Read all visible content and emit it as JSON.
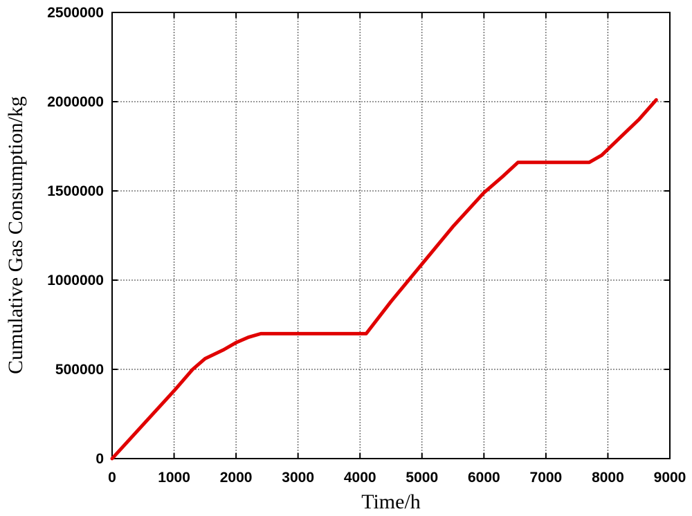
{
  "chart_data": {
    "type": "line",
    "x_label": "Time/h",
    "y_label": "Cumulative Gas Consumption/kg",
    "x": [
      0,
      500,
      1000,
      1300,
      1500,
      1800,
      2000,
      2200,
      2400,
      4100,
      4500,
      5000,
      5500,
      6000,
      6300,
      6550,
      7700,
      7900,
      8200,
      8500,
      8780
    ],
    "series": [
      {
        "color": "#e00000",
        "values": [
          0,
          190000,
          380000,
          500000,
          560000,
          610000,
          650000,
          680000,
          700000,
          700000,
          880000,
          1090000,
          1300000,
          1490000,
          1580000,
          1660000,
          1660000,
          1700000,
          1800000,
          1900000,
          2010000
        ]
      }
    ],
    "xlim": [
      0,
      9000
    ],
    "xticks": [
      0,
      1000,
      2000,
      3000,
      4000,
      5000,
      6000,
      7000,
      8000,
      9000
    ],
    "ylim": [
      0,
      2500000
    ],
    "yticks": [
      0,
      500000,
      1000000,
      1500000,
      2000000,
      2500000
    ],
    "grid": true
  }
}
